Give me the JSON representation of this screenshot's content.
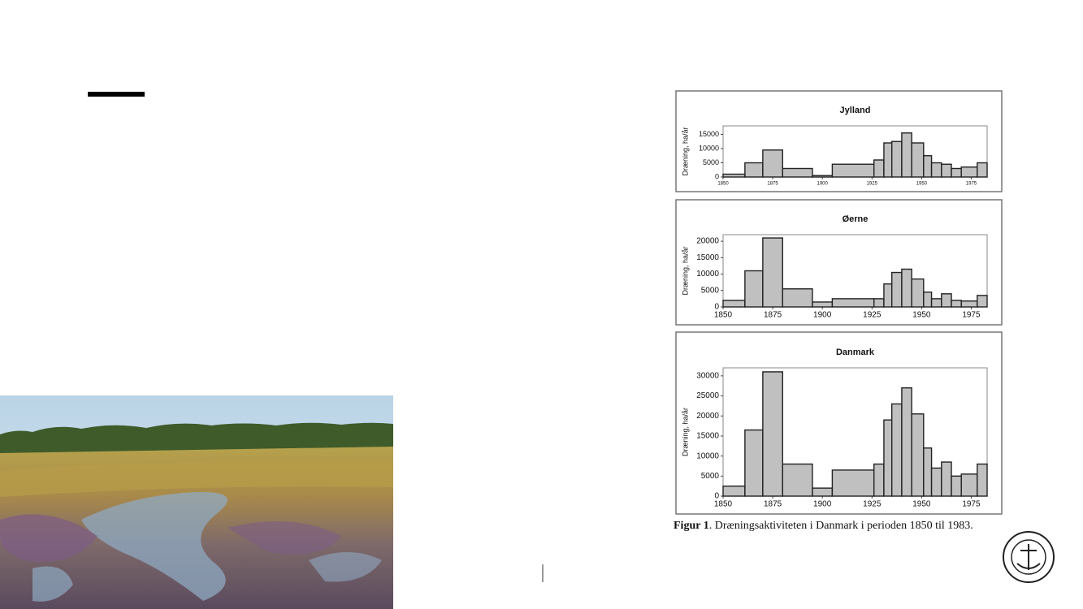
{
  "chart_data": [
    {
      "type": "histogram",
      "title": "Jylland",
      "ylabel": "Dræning, ha/år",
      "bins": [
        1850,
        1861,
        1870,
        1880,
        1895,
        1905,
        1926,
        1931,
        1935,
        1940,
        1945,
        1951,
        1955,
        1960,
        1965,
        1970,
        1978,
        1983
      ],
      "values": [
        1000,
        5000,
        9500,
        3000,
        500,
        4500,
        6000,
        12000,
        12500,
        15500,
        12000,
        7500,
        5000,
        4500,
        3000,
        3500,
        5000
      ],
      "color": "#c0c0c0",
      "xlim": [
        1850,
        1983
      ],
      "xticks": [
        1850,
        1875,
        1900,
        1925,
        1950,
        1975
      ],
      "ylim": [
        0,
        18000
      ],
      "yticks": [
        0,
        5000,
        10000,
        15000
      ]
    },
    {
      "type": "histogram",
      "title": "Øerne",
      "ylabel": "Dræning, ha/år",
      "bins": [
        1850,
        1861,
        1870,
        1880,
        1895,
        1905,
        1926,
        1931,
        1935,
        1940,
        1945,
        1951,
        1955,
        1960,
        1965,
        1970,
        1978,
        1983
      ],
      "values": [
        2000,
        11000,
        21000,
        5500,
        1500,
        2500,
        2500,
        7000,
        10500,
        11500,
        8500,
        4500,
        2500,
        4000,
        2000,
        1800,
        3500
      ],
      "color": "#c0c0c0",
      "xlim": [
        1850,
        1983
      ],
      "xticks": [
        1850,
        1875,
        1900,
        1925,
        1950,
        1975
      ],
      "ylim": [
        0,
        22000
      ],
      "yticks": [
        0,
        5000,
        10000,
        15000,
        20000
      ]
    },
    {
      "type": "histogram",
      "title": "Danmark",
      "ylabel": "Dræning, ha/år",
      "bins": [
        1850,
        1861,
        1870,
        1880,
        1895,
        1905,
        1926,
        1931,
        1935,
        1940,
        1945,
        1951,
        1955,
        1960,
        1965,
        1970,
        1978,
        1983
      ],
      "values": [
        2500,
        16500,
        31000,
        8000,
        2000,
        6500,
        8000,
        19000,
        23000,
        27000,
        20500,
        12000,
        7000,
        8500,
        5000,
        5500,
        8000
      ],
      "color": "#c0c0c0",
      "xlim": [
        1850,
        1983
      ],
      "xticks": [
        1850,
        1875,
        1900,
        1925,
        1950,
        1975
      ],
      "ylim": [
        0,
        32000
      ],
      "yticks": [
        0,
        5000,
        10000,
        15000,
        20000,
        25000,
        30000
      ]
    }
  ],
  "figure": {
    "caption_label": "Figur 1",
    "caption_text": ". Dræningsaktiviteten i Danmark i perioden 1850 til 1983."
  }
}
